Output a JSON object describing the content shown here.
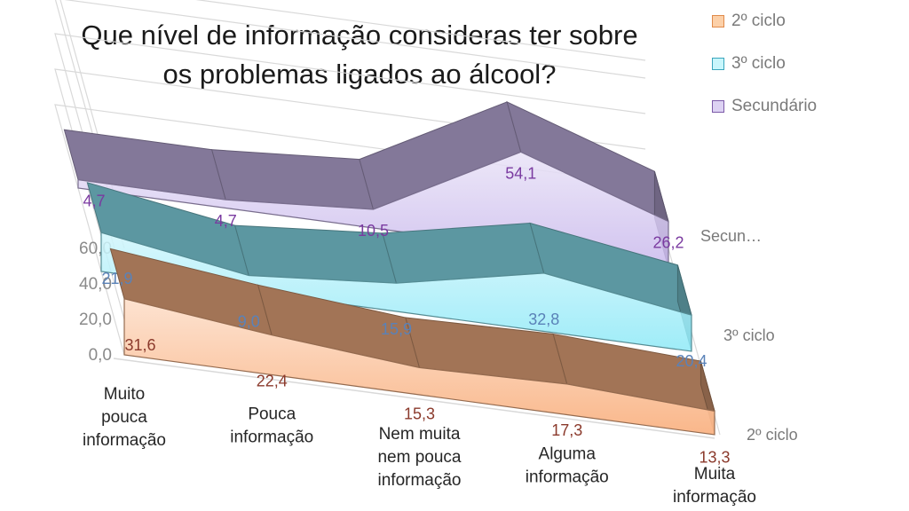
{
  "chart_data": {
    "type": "area",
    "title_lines": [
      "Que nível de informação consideras ter sobre",
      "os problemas  ligados ao álcool?"
    ],
    "categories": [
      [
        "Muito",
        "pouca",
        "informação"
      ],
      [
        "Pouca",
        "informação"
      ],
      [
        "Nem muita",
        "nem pouca",
        "informação"
      ],
      [
        "Alguma",
        "informação"
      ],
      [
        "Muita",
        "informação"
      ]
    ],
    "series": [
      {
        "name": "2º ciclo",
        "depth_label": "2º ciclo",
        "values": [
          31.6,
          22.4,
          15.3,
          17.3,
          13.3
        ],
        "labels": [
          "31,6",
          "22,4",
          "15,3",
          "17,3",
          "13,3"
        ],
        "color": "#f9b384",
        "label_color": "#8b3a2c"
      },
      {
        "name": "3º ciclo",
        "depth_label": "3º ciclo",
        "values": [
          21.9,
          9.0,
          15.9,
          32.8,
          20.4
        ],
        "labels": [
          "21,9",
          "9,0",
          "15,9",
          "32,8",
          "20,4"
        ],
        "color": "#8ee9f7",
        "label_color": "#5a82b8"
      },
      {
        "name": "Secundário",
        "depth_label": "Secun…",
        "values": [
          4.7,
          4.7,
          10.5,
          54.1,
          26.2
        ],
        "labels": [
          "4,7",
          "4,7",
          "10,5",
          "54,1",
          "26,2"
        ],
        "color": "#c9b8ec",
        "label_color": "#7a3aa0"
      }
    ],
    "y_ticks": [
      "0,0",
      "20,0",
      "40,0",
      "60,0"
    ],
    "ylim": [
      0,
      60
    ],
    "grid": true,
    "legend_position": "top-right",
    "view": "3d"
  }
}
